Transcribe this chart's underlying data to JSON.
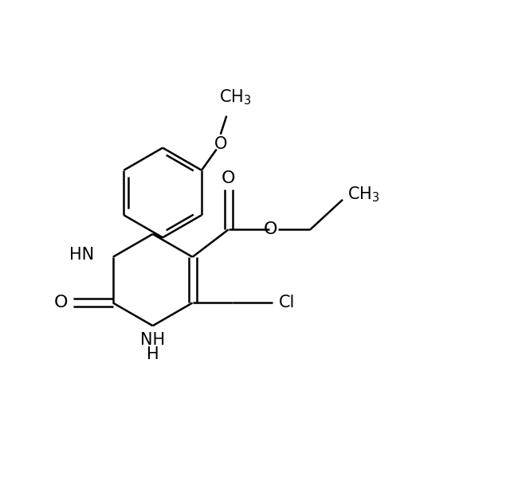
{
  "bg_color": "#ffffff",
  "line_color": "#000000",
  "line_width": 1.8,
  "font_size": 14,
  "figsize": [
    6.4,
    6.28
  ],
  "dpi": 100,
  "xlim": [
    0,
    10
  ],
  "ylim": [
    0,
    9.8
  ]
}
